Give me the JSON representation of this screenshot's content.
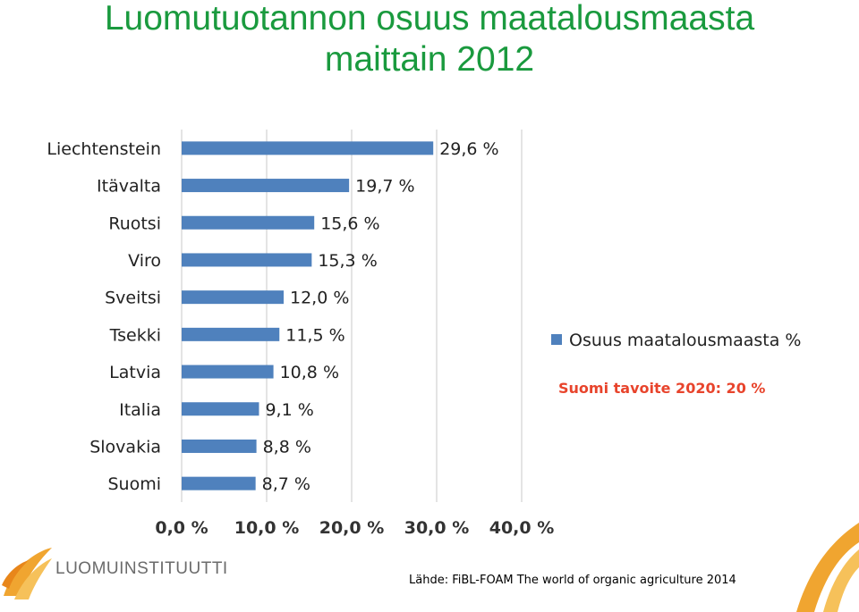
{
  "title": {
    "line1": "Luomutuotannon osuus maatalousmaasta",
    "line2": "maittain 2012"
  },
  "chart_data": {
    "type": "bar",
    "orientation": "horizontal",
    "categories": [
      "Liechtenstein",
      "Itävalta",
      "Ruotsi",
      "Viro",
      "Sveitsi",
      "Tsekki",
      "Latvia",
      "Italia",
      "Slovakia",
      "Suomi"
    ],
    "series": [
      {
        "name": "Osuus maatalousmaasta %",
        "values": [
          29.6,
          19.7,
          15.6,
          15.3,
          12.0,
          11.5,
          10.8,
          9.1,
          8.8,
          8.7
        ],
        "labels": [
          "29,6 %",
          "19,7 %",
          "15,6 %",
          "15,3 %",
          "12,0 %",
          "11,5 %",
          "10,8 %",
          "9,1 %",
          "8,8 %",
          "8,7 %"
        ]
      }
    ],
    "xlim": [
      0,
      40
    ],
    "xticks": [
      0,
      10,
      20,
      30,
      40
    ],
    "xtick_labels": [
      "0,0 %",
      "10,0 %",
      "20,0 %",
      "30,0 %",
      "40,0 %"
    ],
    "grid": "vertical",
    "legend_position": "right",
    "annotation": "Suomi tavoite 2020: 20 %",
    "colors": {
      "bar": "#4f81bd",
      "annotation": "#e8442c",
      "grid": "#c8c8c8"
    }
  },
  "logo": {
    "text": "LUOMUINSTITUUTTI"
  },
  "source": "Lähde: FiBL-FOAM The world of organic agriculture 2014",
  "colors": {
    "title": "#1a9a3e",
    "accent_orange": "#f0a530"
  }
}
